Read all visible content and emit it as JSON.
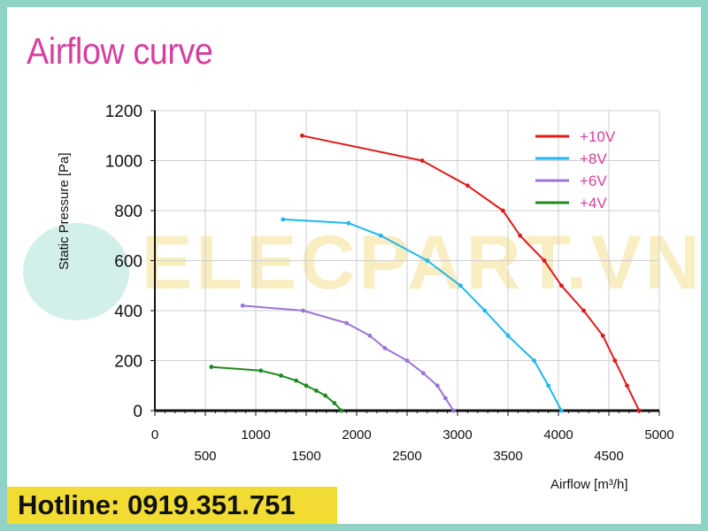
{
  "page": {
    "title": "Airflow curve",
    "hotline": "Hotline: 0919.351.751",
    "watermark": "ELECPART.VN"
  },
  "chart_data": {
    "type": "line",
    "title": "Airflow curve",
    "xlabel": "Airflow [m³/h]",
    "ylabel": "Static Pressure [Pa]",
    "xlim": [
      0,
      5000
    ],
    "ylim": [
      0,
      1200
    ],
    "x_ticks_upper": [
      0,
      1000,
      2000,
      3000,
      4000,
      5000
    ],
    "x_ticks_lower": [
      500,
      1500,
      2500,
      3500,
      4500
    ],
    "y_ticks": [
      0,
      200,
      400,
      600,
      800,
      1000,
      1200
    ],
    "grid": true,
    "legend": "top-right",
    "series": [
      {
        "name": "+10V",
        "color": "#e01a1a",
        "points": [
          [
            1460,
            1100
          ],
          [
            2650,
            1000
          ],
          [
            3100,
            900
          ],
          [
            3450,
            800
          ],
          [
            3620,
            700
          ],
          [
            3860,
            600
          ],
          [
            4030,
            500
          ],
          [
            4250,
            400
          ],
          [
            4440,
            300
          ],
          [
            4560,
            200
          ],
          [
            4680,
            100
          ],
          [
            4800,
            0
          ]
        ]
      },
      {
        "name": "+8V",
        "color": "#1fb7ee",
        "points": [
          [
            1270,
            765
          ],
          [
            1920,
            750
          ],
          [
            2240,
            700
          ],
          [
            2700,
            600
          ],
          [
            3030,
            500
          ],
          [
            3270,
            400
          ],
          [
            3500,
            300
          ],
          [
            3760,
            200
          ],
          [
            3900,
            100
          ],
          [
            4030,
            0
          ]
        ]
      },
      {
        "name": "+6V",
        "color": "#9c74d8",
        "points": [
          [
            870,
            420
          ],
          [
            1470,
            400
          ],
          [
            1900,
            350
          ],
          [
            2130,
            300
          ],
          [
            2280,
            250
          ],
          [
            2500,
            200
          ],
          [
            2660,
            150
          ],
          [
            2800,
            100
          ],
          [
            2880,
            50
          ],
          [
            2960,
            0
          ]
        ]
      },
      {
        "name": "+4V",
        "color": "#1e8a1e",
        "points": [
          [
            560,
            175
          ],
          [
            1050,
            160
          ],
          [
            1250,
            140
          ],
          [
            1400,
            120
          ],
          [
            1500,
            100
          ],
          [
            1600,
            80
          ],
          [
            1690,
            60
          ],
          [
            1780,
            30
          ],
          [
            1850,
            0
          ]
        ]
      }
    ]
  }
}
